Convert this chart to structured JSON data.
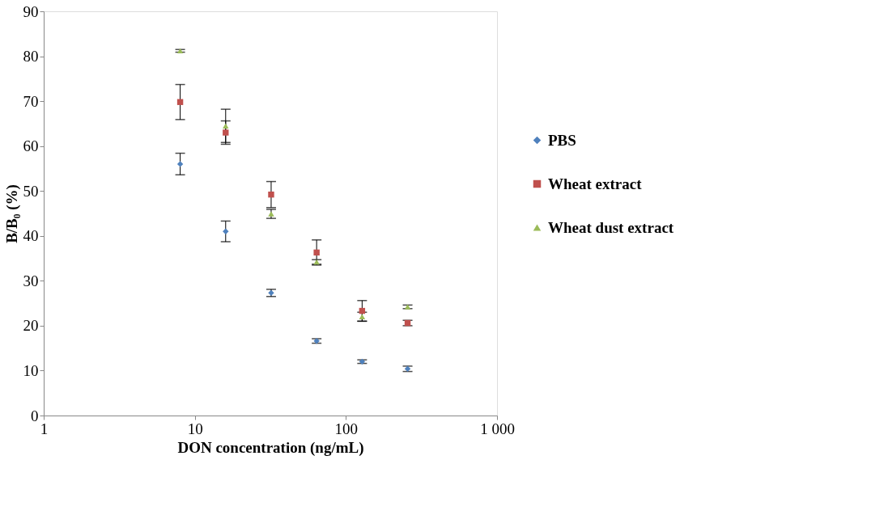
{
  "chart_data": {
    "type": "scatter",
    "xlabel": "DON concentration (ng/mL)",
    "ylabel": "B/B₀ (%)",
    "log": "x",
    "xlim": [
      1,
      1000
    ],
    "xticks": [
      1,
      10,
      100,
      {
        "value": 1000,
        "label": "1 000"
      }
    ],
    "ylim": [
      0,
      90
    ],
    "yticks": [
      0,
      10,
      20,
      30,
      40,
      50,
      60,
      70,
      80,
      90
    ],
    "grid": false,
    "legend": "right",
    "x": [
      8,
      16,
      32,
      64,
      128,
      256
    ],
    "series": [
      {
        "name": "PBS",
        "color": "#4f81bd",
        "marker": "diamond",
        "values": [
          56.0,
          41.0,
          27.3,
          16.6,
          12.0,
          10.4
        ],
        "errors": [
          2.4,
          2.3,
          0.8,
          0.5,
          0.4,
          0.6
        ]
      },
      {
        "name": "Wheat extract",
        "color": "#c0504d",
        "marker": "square",
        "values": [
          69.8,
          63.0,
          49.2,
          36.3,
          23.3,
          20.6
        ],
        "errors": [
          3.9,
          2.6,
          2.9,
          2.8,
          2.3,
          0.6
        ]
      },
      {
        "name": "Wheat dust extract",
        "color": "#9bbb59",
        "marker": "triangle",
        "values": [
          81.2,
          64.5,
          44.9,
          34.2,
          22.0,
          24.2
        ],
        "errors": [
          0.3,
          3.7,
          1.0,
          0.5,
          1.0,
          0.4
        ]
      }
    ]
  }
}
